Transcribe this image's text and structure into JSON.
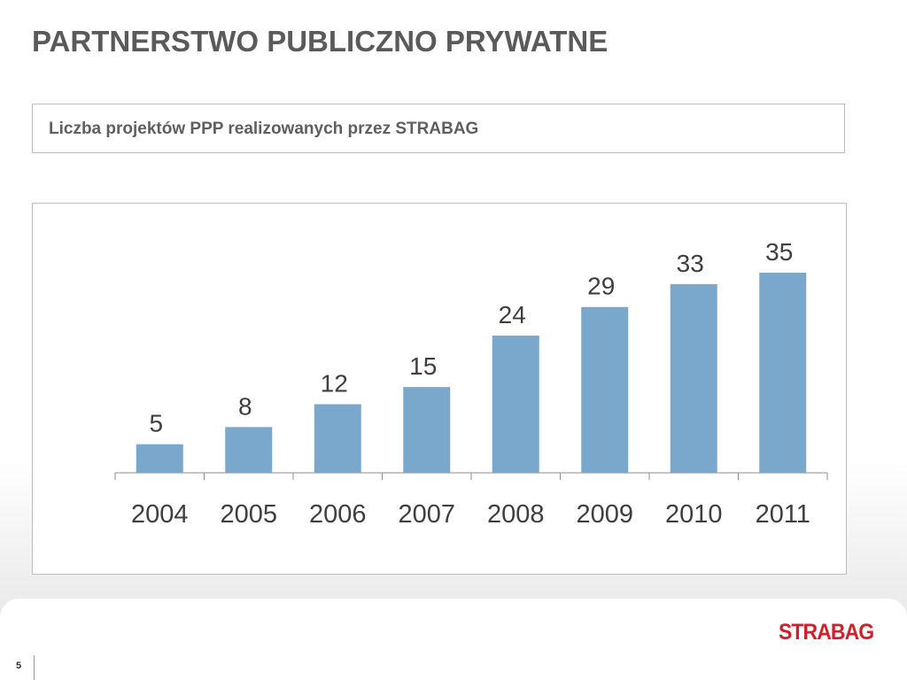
{
  "header": {
    "title": "PARTNERSTWO PUBLICZNO PRYWATNE",
    "subtitle": "Liczba projektów PPP realizowanych przez STRABAG"
  },
  "chart_data": {
    "type": "bar",
    "categories": [
      "2004",
      "2005",
      "2006",
      "2007",
      "2008",
      "2009",
      "2010",
      "2011"
    ],
    "values": [
      5,
      8,
      12,
      15,
      24,
      29,
      33,
      35
    ],
    "title": "",
    "xlabel": "",
    "ylabel": "",
    "ylim": [
      0,
      35
    ],
    "grid": false,
    "legend": "none",
    "data_labels": true,
    "bar_color": "#7aa8cc"
  },
  "footer": {
    "page_number": "5",
    "logo": "STRABAG",
    "logo_color": "#d0202a"
  }
}
